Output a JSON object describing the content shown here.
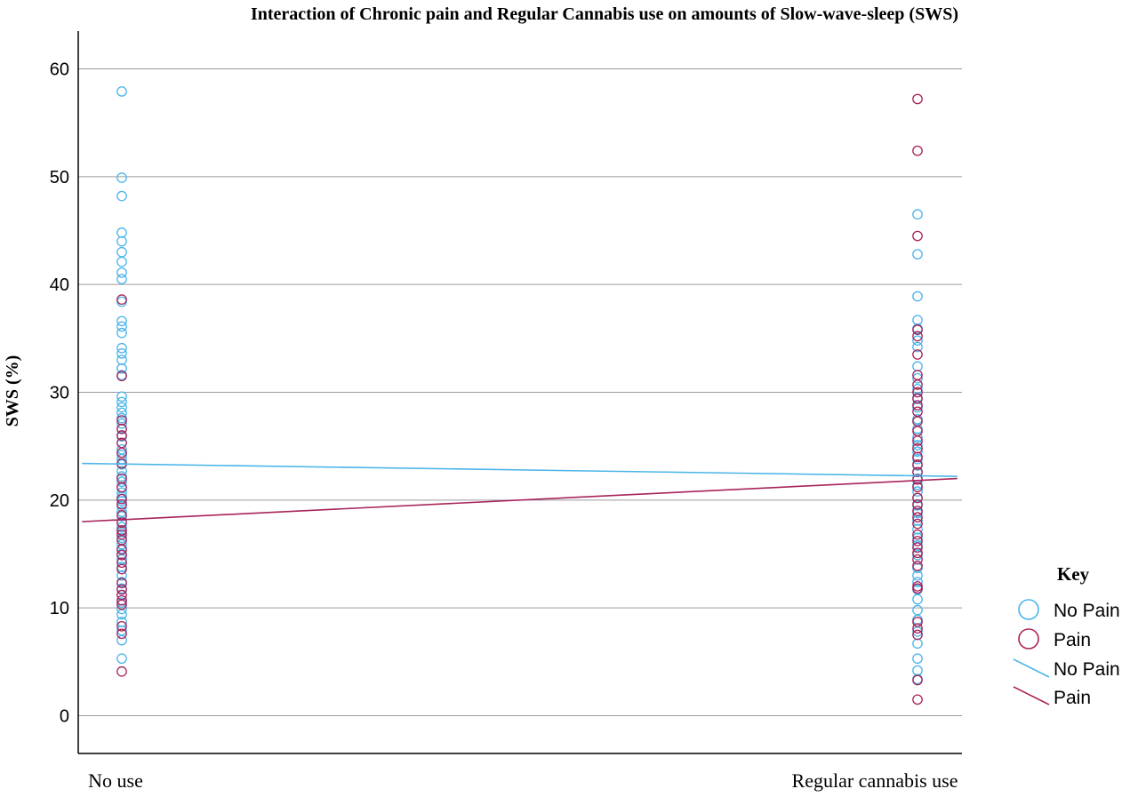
{
  "chart_data": {
    "type": "scatter",
    "title": "Interaction of Chronic pain and Regular Cannabis use on amounts of Slow-wave-sleep (SWS)",
    "xlabel": "",
    "ylabel": "SWS (%)",
    "categories": [
      "No use",
      "Regular cannabis use"
    ],
    "ylim": [
      -3.5,
      63.5
    ],
    "yticks": [
      0,
      10,
      20,
      30,
      40,
      50,
      60
    ],
    "grid": true,
    "legend_title": "Key",
    "legend_position": "right",
    "colors": {
      "no_pain": "#4ab4ea",
      "pain": "#a8235a"
    },
    "series": [
      {
        "name": "No Pain",
        "marker": "circle",
        "color": "#4ab4ea",
        "points": {
          "No use": [
            57.9,
            49.9,
            48.2,
            44.8,
            44.0,
            43.0,
            42.1,
            41.1,
            40.5,
            38.4,
            36.6,
            36.1,
            35.5,
            34.1,
            33.6,
            33.0,
            32.2,
            31.6,
            29.6,
            29.1,
            28.6,
            28.1,
            27.6,
            27.1,
            26.6,
            25.9,
            25.3,
            24.7,
            24.2,
            23.8,
            23.3,
            22.7,
            22.2,
            21.7,
            21.1,
            20.7,
            20.3,
            19.9,
            19.4,
            18.9,
            18.5,
            18.0,
            17.5,
            17.0,
            16.5,
            15.9,
            15.5,
            15.0,
            14.5,
            13.8,
            13.0,
            12.4,
            11.8,
            11.2,
            10.5,
            9.9,
            9.4,
            8.7,
            7.9,
            7.0,
            5.3
          ],
          "Regular cannabis use": [
            46.5,
            42.8,
            38.9,
            36.7,
            35.9,
            34.8,
            34.2,
            32.4,
            31.3,
            30.3,
            29.5,
            28.6,
            27.5,
            26.6,
            25.8,
            25.1,
            24.5,
            23.8,
            23.2,
            22.6,
            22.0,
            21.4,
            20.8,
            20.2,
            19.5,
            18.8,
            18.1,
            17.3,
            16.5,
            15.8,
            14.9,
            13.7,
            13.0,
            12.4,
            11.7,
            10.8,
            9.8,
            8.9,
            7.8,
            6.7,
            5.3,
            4.2,
            3.4
          ]
        }
      },
      {
        "name": "Pain",
        "marker": "circle",
        "color": "#a8235a",
        "points": {
          "No use": [
            38.6,
            31.5,
            27.4,
            26.6,
            26.0,
            25.3,
            24.4,
            23.4,
            22.0,
            21.2,
            20.1,
            19.6,
            18.6,
            17.9,
            17.2,
            16.8,
            16.3,
            15.4,
            14.9,
            14.2,
            13.6,
            12.3,
            11.7,
            11.2,
            10.7,
            10.3,
            8.3,
            7.6,
            4.1
          ],
          "Regular cannabis use": [
            57.2,
            52.4,
            44.5,
            35.8,
            35.2,
            33.5,
            31.6,
            30.7,
            30.0,
            29.4,
            28.8,
            28.2,
            27.3,
            26.4,
            25.5,
            24.8,
            24.0,
            23.3,
            22.6,
            21.9,
            21.2,
            20.2,
            19.6,
            19.0,
            18.4,
            17.8,
            16.8,
            16.2,
            15.6,
            15.1,
            14.5,
            13.9,
            12.0,
            11.8,
            8.7,
            8.1,
            7.5,
            3.3,
            1.5
          ]
        }
      }
    ],
    "fit_lines": [
      {
        "name": "No Pain",
        "color": "#4ab4ea",
        "x": [
          -0.05,
          1.05
        ],
        "y": [
          23.4,
          22.2
        ]
      },
      {
        "name": "Pain",
        "color": "#a8235a",
        "x": [
          -0.05,
          1.05
        ],
        "y": [
          18.0,
          22.0
        ]
      }
    ],
    "key_labels": {
      "marker_no_pain": "No Pain",
      "marker_pain": "Pain",
      "line_no_pain": "No Pain",
      "line_pain": "Pain"
    }
  }
}
